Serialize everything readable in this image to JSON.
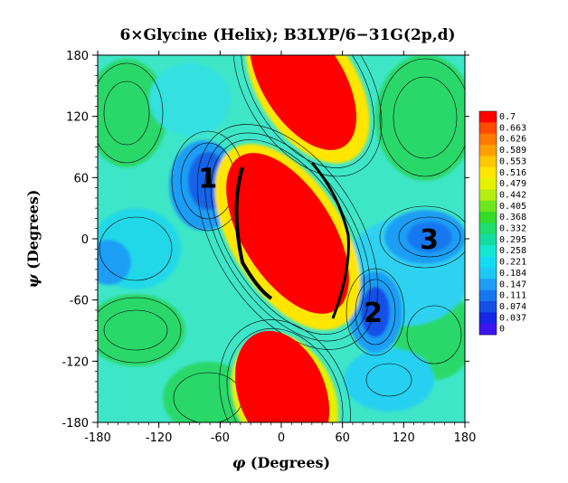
{
  "chart_data": {
    "type": "heatmap",
    "title": "6×Glycine (Helix); B3LYP/6−31G(2p,d)",
    "xlabel_symbol": "φ",
    "xlabel_text": " (Degrees)",
    "ylabel_symbol": "ψ",
    "ylabel_text": " (Degrees)",
    "xlim": [
      -180,
      180
    ],
    "ylim": [
      -180,
      180
    ],
    "x_ticks": [
      -180,
      -120,
      -60,
      0,
      60,
      120,
      180
    ],
    "y_ticks": [
      180,
      120,
      60,
      0,
      -60,
      -120,
      -180
    ],
    "x_tick_labels": [
      "-180",
      "-120",
      "-60",
      "0",
      "60",
      "120",
      "180"
    ],
    "y_tick_labels": [
      "180",
      "120",
      "60",
      "0",
      "-60",
      "-120",
      "-180"
    ],
    "colorbar": {
      "labels": [
        "0.7",
        "0.663",
        "0.626",
        "0.589",
        "0.553",
        "0.516",
        "0.479",
        "0.442",
        "0.405",
        "0.368",
        "0.332",
        "0.295",
        "0.258",
        "0.221",
        "0.184",
        "0.147",
        "0.111",
        "0.074",
        "0.037",
        "0"
      ],
      "colors": [
        "#ff0000",
        "#ff4a00",
        "#ff7a00",
        "#ffa000",
        "#ffc800",
        "#ffe600",
        "#e6f000",
        "#b4ee14",
        "#6ee61e",
        "#32dc28",
        "#1edc6e",
        "#14dca0",
        "#14e6d2",
        "#14dcf0",
        "#1ec8f5",
        "#1e9ef5",
        "#1478f0",
        "#1450e6",
        "#1428e6",
        "#3c14f0"
      ]
    },
    "annotations": [
      {
        "label": "1",
        "x": -72,
        "y": 60
      },
      {
        "label": "2",
        "x": 90,
        "y": -72
      },
      {
        "label": "3",
        "x": 145,
        "y": 0
      }
    ],
    "minima": [
      {
        "x": -72,
        "y": 58
      },
      {
        "x": 92,
        "y": -72
      },
      {
        "x": 140,
        "y": 5
      }
    ],
    "maxima": [
      {
        "x": 20,
        "y": -20
      },
      {
        "x": 40,
        "y": 150
      },
      {
        "x": 0,
        "y": -170
      }
    ]
  }
}
